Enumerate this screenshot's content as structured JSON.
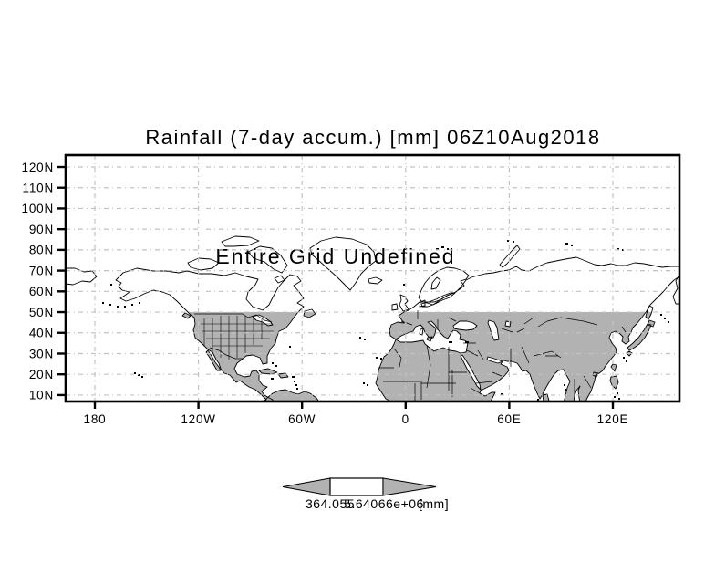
{
  "title": "Rainfall (7-day accum.) [mm] 06Z10Aug2018",
  "annotation": "Entire Grid Undefined",
  "axes": {
    "y_ticks": [
      "120N",
      "110N",
      "100N",
      "90N",
      "80N",
      "70N",
      "60N",
      "50N",
      "40N",
      "30N",
      "20N",
      "10N"
    ],
    "x_ticks": [
      "180",
      "120W",
      "60W",
      "0",
      "60E",
      "120E"
    ]
  },
  "colorbar": {
    "min_label": "364.055",
    "max_label": "5.64066e+06",
    "units_label": "[mm]"
  },
  "colors": {
    "land_shade": "#b2b2b2",
    "gridline": "#c2c2c2",
    "annotation_gray": "#a3a3a3",
    "coastline": "#000000",
    "frame": "#000000"
  },
  "chart_data": {
    "type": "heatmap",
    "title": "Rainfall (7-day accum.) [mm] 06Z10Aug2018",
    "variable": "Rainfall (7-day accum.)",
    "units": "[mm]",
    "valid_time": "06Z10Aug2018",
    "x_tick_labels": [
      "180",
      "120W",
      "60W",
      "0",
      "60E",
      "120E"
    ],
    "y_tick_labels": [
      "120N",
      "110N",
      "100N",
      "90N",
      "80N",
      "70N",
      "60N",
      "50N",
      "40N",
      "30N",
      "20N",
      "10N"
    ],
    "grid": "on, gray dash-dot gridlines at each labeled tick",
    "annotation": "Entire Grid Undefined",
    "data_status": "grid undefined - no shaded rainfall values plotted; base world map shown with land shaded gray south of the 50N gridline",
    "legend_position": "bottom center horizontal arrow colorbar",
    "colorbar": {
      "labels": [
        "364.055",
        "5.64066e+06"
      ],
      "units": "[mm]",
      "note": "labels overlap beneath narrow white bar with gray end-arrows"
    }
  }
}
